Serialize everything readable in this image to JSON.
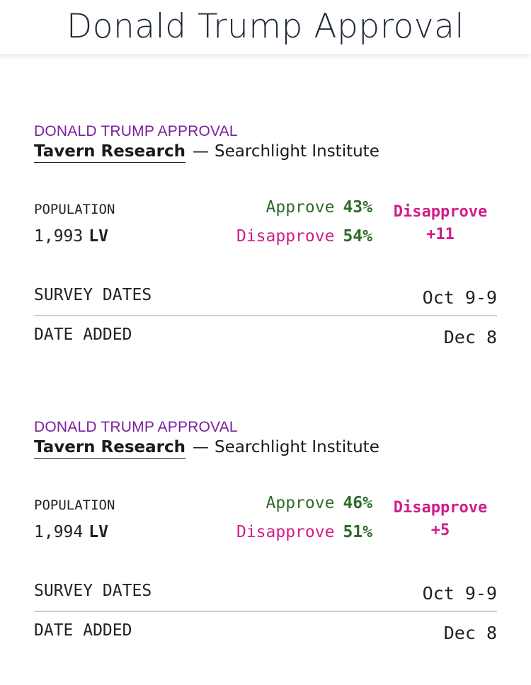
{
  "header": {
    "title": "Donald Trump Approval"
  },
  "polls": [
    {
      "kicker": "DONALD TRUMP APPROVAL",
      "pollster": "Tavern Research",
      "dash": "—",
      "sponsor": "Searchlight Institute",
      "population_label": "POPULATION",
      "sample_size": "1,993",
      "population": "LV",
      "approve_label": "Approve",
      "approve_pct": "43%",
      "disapprove_label": "Disapprove",
      "disapprove_pct": "54%",
      "net_label": "Disapprove",
      "net_value": "+11",
      "survey_dates_label": "SURVEY DATES",
      "survey_dates": "Oct 9-9",
      "date_added_label": "DATE ADDED",
      "date_added": "Dec 8"
    },
    {
      "kicker": "DONALD TRUMP APPROVAL",
      "pollster": "Tavern Research",
      "dash": "—",
      "sponsor": "Searchlight Institute",
      "population_label": "POPULATION",
      "sample_size": "1,994",
      "population": "LV",
      "approve_label": "Approve",
      "approve_pct": "46%",
      "disapprove_label": "Disapprove",
      "disapprove_pct": "51%",
      "net_label": "Disapprove",
      "net_value": "+5",
      "survey_dates_label": "SURVEY DATES",
      "survey_dates": "Oct 9-9",
      "date_added_label": "DATE ADDED",
      "date_added": "Dec 8"
    }
  ],
  "colors": {
    "kicker": "#7a1fa0",
    "approve": "#2e6b2b",
    "disapprove": "#d01d8a",
    "divider": "#cfcfcf"
  }
}
